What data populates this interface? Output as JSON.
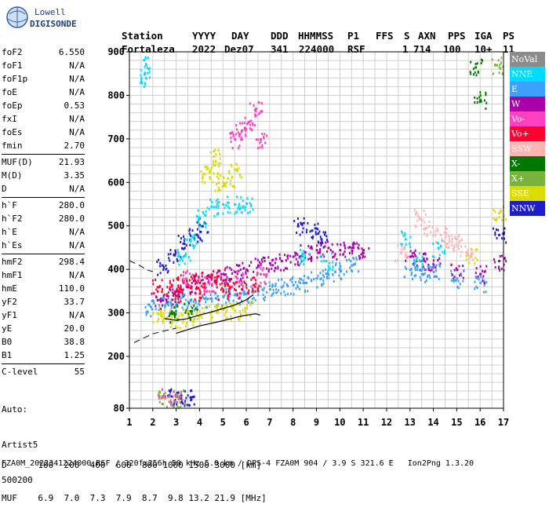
{
  "logo": {
    "line1": "Lowell",
    "line2": "DIGISONDE"
  },
  "header": {
    "labels": [
      "Station",
      "YYYY",
      "DAY",
      "DDD",
      "HHMMSS",
      "P1",
      "FFS",
      "S",
      "AXN",
      "PPS",
      "IGA",
      "PS"
    ],
    "values": [
      "Fortaleza",
      "2022",
      "Dez07",
      "341",
      "224000",
      "RSF",
      "1",
      "714",
      "100",
      "10+",
      "11"
    ]
  },
  "params": {
    "group1": [
      [
        "foF2",
        "6.550"
      ],
      [
        "foF1",
        "N/A"
      ],
      [
        "foF1p",
        "N/A"
      ],
      [
        "foE",
        "N/A"
      ],
      [
        "foEp",
        "0.53"
      ],
      [
        "fxI",
        "N/A"
      ],
      [
        "foEs",
        "N/A"
      ],
      [
        "fmin",
        "2.70"
      ]
    ],
    "group2": [
      [
        "MUF(D)",
        "21.93"
      ],
      [
        "M(D)",
        "3.35"
      ],
      [
        "D",
        "N/A"
      ]
    ],
    "group3": [
      [
        "h`F",
        "280.0"
      ],
      [
        "h`F2",
        "280.0"
      ],
      [
        "h`E",
        "N/A"
      ],
      [
        "h`Es",
        "N/A"
      ]
    ],
    "group4": [
      [
        "hmF2",
        "298.4"
      ],
      [
        "hmF1",
        "N/A"
      ],
      [
        "hmE",
        "110.0"
      ],
      [
        "yF2",
        "33.7"
      ],
      [
        "yF1",
        "N/A"
      ],
      [
        "yE",
        "20.0"
      ],
      [
        "B0",
        "38.8"
      ],
      [
        "B1",
        "1.25"
      ]
    ],
    "group5": [
      [
        "C-level",
        "55"
      ]
    ],
    "auto": [
      "Auto:",
      "Artist5",
      "500200"
    ]
  },
  "legend": [
    {
      "label": "NoVal",
      "color": "#8c8c8c"
    },
    {
      "label": "NNE",
      "color": "#00dcff"
    },
    {
      "label": "E",
      "color": "#3ca0ff"
    },
    {
      "label": "W",
      "color": "#aa00aa"
    },
    {
      "label": "Vo-",
      "color": "#ff40c0"
    },
    {
      "label": "Vo+",
      "color": "#ff0030"
    },
    {
      "label": "SSW",
      "color": "#ffb4b4"
    },
    {
      "label": "X-",
      "color": "#007800"
    },
    {
      "label": "X+",
      "color": "#78b43c"
    },
    {
      "label": "SSE",
      "color": "#dcdc00"
    },
    {
      "label": "NNW",
      "color": "#1e1ec8"
    }
  ],
  "bottom": {
    "d_label": "D",
    "d_values": "100  200  400  600  800 1000 1500 3000 [km]",
    "muf_label": "MUF",
    "muf_values": "6.9  7.0  7.3  7.9  8.7  9.8 13.2 21.9 [MHz]"
  },
  "footer": "FZA0M_2022341224000.RSF / 320fx256h 50 kHz 5.0 km / DPS-4 FZA0M 904 / 3.9 S 321.6 E   Ion2Png 1.3.20",
  "chart_data": {
    "type": "scatter",
    "xlim": [
      1,
      17
    ],
    "ylim": [
      80,
      900
    ],
    "xticks": [
      1,
      2,
      3,
      4,
      5,
      6,
      7,
      8,
      9,
      10,
      11,
      12,
      13,
      14,
      15,
      16,
      17
    ],
    "yticks": [
      80,
      200,
      300,
      400,
      500,
      600,
      700,
      800,
      900
    ],
    "grid": true,
    "series": [
      {
        "color": "#aa00aa",
        "points": [
          [
            2.2,
            330
          ],
          [
            2.6,
            340
          ],
          [
            3.0,
            350
          ],
          [
            3.5,
            360
          ],
          [
            4.0,
            370
          ],
          [
            4.5,
            380
          ],
          [
            5.0,
            390
          ],
          [
            5.5,
            395
          ],
          [
            6.0,
            400
          ],
          [
            6.5,
            410
          ],
          [
            7.0,
            415
          ],
          [
            7.5,
            420
          ],
          [
            8.0,
            430
          ],
          [
            8.5,
            440
          ],
          [
            9.0,
            445
          ],
          [
            9.5,
            450
          ],
          [
            10.0,
            445
          ],
          [
            10.5,
            450
          ],
          [
            11.0,
            445
          ],
          [
            13.0,
            430
          ],
          [
            13.5,
            420
          ],
          [
            14.0,
            410
          ],
          [
            15.0,
            400
          ],
          [
            16.0,
            390
          ],
          [
            16.8,
            420
          ]
        ]
      },
      {
        "color": "#3ca0ff",
        "points": [
          [
            1.9,
            315
          ],
          [
            2.5,
            318
          ],
          [
            3.0,
            322
          ],
          [
            3.5,
            326
          ],
          [
            4.0,
            330
          ],
          [
            4.5,
            334
          ],
          [
            5.0,
            338
          ],
          [
            5.5,
            342
          ],
          [
            6.0,
            345
          ],
          [
            6.5,
            350
          ],
          [
            7.0,
            355
          ],
          [
            7.5,
            360
          ],
          [
            8.0,
            365
          ],
          [
            8.5,
            370
          ],
          [
            9.0,
            380
          ],
          [
            9.5,
            390
          ],
          [
            10.0,
            400
          ],
          [
            10.5,
            410
          ],
          [
            13.0,
            400
          ],
          [
            13.5,
            390
          ],
          [
            14.0,
            395
          ],
          [
            15.0,
            380
          ],
          [
            16.0,
            370
          ]
        ]
      },
      {
        "color": "#ff0030",
        "points": [
          [
            2.2,
            360
          ],
          [
            2.8,
            365
          ],
          [
            3.3,
            370
          ],
          [
            3.8,
            375
          ],
          [
            4.3,
            380
          ],
          [
            4.8,
            385
          ],
          [
            5.3,
            360
          ],
          [
            5.8,
            355
          ],
          [
            6.3,
            365
          ],
          [
            3.0,
            340
          ],
          [
            4.0,
            345
          ],
          [
            5.0,
            350
          ]
        ]
      },
      {
        "color": "#dcdc00",
        "points": [
          [
            2.2,
            300
          ],
          [
            2.6,
            290
          ],
          [
            3.0,
            285
          ],
          [
            3.5,
            292
          ],
          [
            4.0,
            296
          ],
          [
            4.5,
            304
          ],
          [
            5.0,
            308
          ],
          [
            5.5,
            306
          ],
          [
            6.0,
            312
          ],
          [
            4.2,
            620
          ],
          [
            4.6,
            640
          ],
          [
            4.8,
            600
          ],
          [
            5.2,
            610
          ],
          [
            5.5,
            630
          ],
          [
            4.6,
            660
          ],
          [
            15.6,
            430
          ],
          [
            16.8,
            530
          ]
        ]
      },
      {
        "color": "#1e1ec8",
        "points": [
          [
            2.4,
            410
          ],
          [
            2.9,
            435
          ],
          [
            3.3,
            460
          ],
          [
            3.8,
            480
          ],
          [
            4.1,
            500
          ],
          [
            8.2,
            500
          ],
          [
            8.8,
            490
          ],
          [
            9.2,
            470
          ],
          [
            16.8,
            480
          ],
          [
            2.8,
            108
          ],
          [
            3.2,
            110
          ],
          [
            3.6,
            106
          ]
        ]
      },
      {
        "color": "#00dcff",
        "points": [
          [
            1.7,
            870
          ],
          [
            1.7,
            840
          ],
          [
            3.3,
            430
          ],
          [
            3.6,
            470
          ],
          [
            4.0,
            520
          ],
          [
            4.5,
            545
          ],
          [
            5.0,
            550
          ],
          [
            5.5,
            550
          ],
          [
            6.0,
            552
          ],
          [
            8.4,
            430
          ],
          [
            9.4,
            420
          ],
          [
            12.8,
            470
          ],
          [
            13.4,
            420
          ],
          [
            14.2,
            450
          ]
        ]
      },
      {
        "color": "#ff40c0",
        "points": [
          [
            5.5,
            700
          ],
          [
            5.8,
            720
          ],
          [
            6.1,
            740
          ],
          [
            6.4,
            770
          ],
          [
            6.6,
            700
          ],
          [
            3.4,
            380
          ],
          [
            4.4,
            370
          ],
          [
            5.6,
            380
          ],
          [
            6.6,
            390
          ],
          [
            2.5,
            108
          ],
          [
            3.0,
            107
          ]
        ]
      },
      {
        "color": "#ffb4b4",
        "points": [
          [
            13.4,
            520
          ],
          [
            13.8,
            500
          ],
          [
            14.3,
            480
          ],
          [
            14.6,
            460
          ],
          [
            15.0,
            470
          ],
          [
            12.6,
            440
          ],
          [
            15.4,
            440
          ]
        ]
      },
      {
        "color": "#007800",
        "points": [
          [
            15.8,
            865
          ],
          [
            16.0,
            790
          ],
          [
            2.8,
            300
          ],
          [
            3.6,
            305
          ]
        ]
      },
      {
        "color": "#78b43c",
        "points": [
          [
            2.4,
            105
          ],
          [
            3.1,
            103
          ],
          [
            16.7,
            870
          ]
        ]
      }
    ],
    "traces": [
      {
        "name": "o-trace",
        "points": [
          [
            2.5,
            287
          ],
          [
            3.0,
            283
          ],
          [
            3.5,
            287
          ],
          [
            4.0,
            295
          ],
          [
            4.5,
            302
          ],
          [
            5.0,
            310
          ],
          [
            5.5,
            318
          ],
          [
            6.0,
            330
          ],
          [
            6.3,
            342
          ]
        ]
      },
      {
        "name": "x-trace",
        "points": [
          [
            3.0,
            253
          ],
          [
            4.0,
            270
          ],
          [
            5.0,
            282
          ],
          [
            5.8,
            293
          ],
          [
            6.4,
            298
          ],
          [
            6.6,
            295
          ]
        ]
      }
    ],
    "dashed": [
      [
        1.2,
        232
      ],
      [
        1.6,
        242
      ],
      [
        2.0,
        252
      ],
      [
        2.6,
        260
      ],
      [
        3.0,
        265
      ]
    ],
    "dashed2": [
      [
        1.0,
        420
      ],
      [
        1.4,
        410
      ],
      [
        1.8,
        398
      ],
      [
        2.0,
        395
      ]
    ]
  }
}
